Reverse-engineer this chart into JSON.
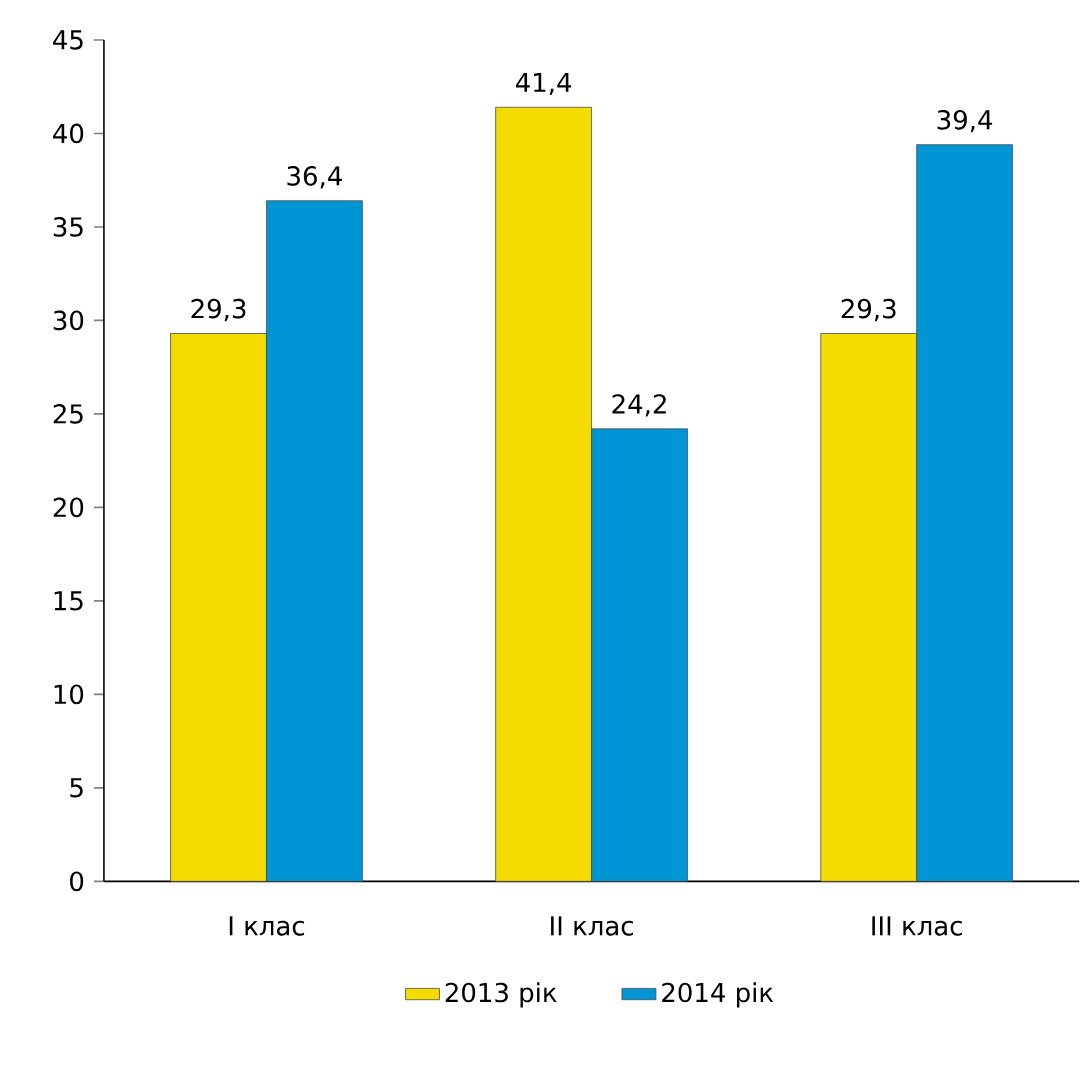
{
  "chart_data": {
    "type": "bar",
    "categories": [
      "I клас",
      "II клас",
      "III клас"
    ],
    "series": [
      {
        "name": "2013 рік",
        "color": "#f5dc00",
        "values": [
          29.3,
          41.4,
          29.3
        ],
        "value_labels": [
          "29,3",
          "41,4",
          "29,3"
        ]
      },
      {
        "name": "2014 рік",
        "color": "#0096d6",
        "values": [
          36.4,
          24.2,
          39.4
        ],
        "value_labels": [
          "36,4",
          "24,2",
          "39,4"
        ]
      }
    ],
    "ylim": [
      0,
      45
    ],
    "yticks": [
      0,
      5,
      10,
      15,
      20,
      25,
      30,
      35,
      40,
      45
    ],
    "grid": false,
    "legend": "bottom"
  }
}
